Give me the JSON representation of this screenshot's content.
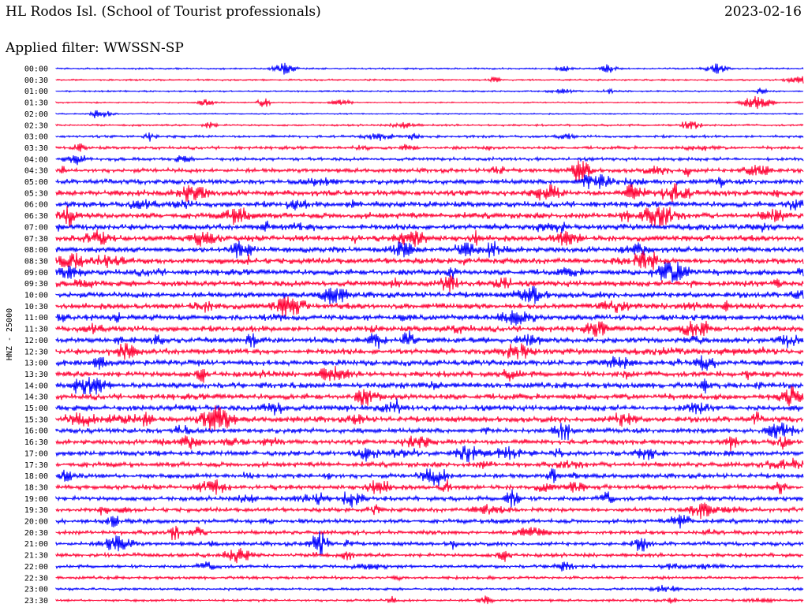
{
  "header": {
    "station": "HL Rodos Isl. (School of Tourist professionals)",
    "date": "2023-02-16",
    "filter": "Applied filter: WWSSN-SP"
  },
  "chart_data": {
    "type": "line",
    "ylabel": "HNZ - 25000",
    "row_labels": [
      "00:00",
      "00:30",
      "01:00",
      "01:30",
      "02:00",
      "02:30",
      "03:00",
      "03:30",
      "04:00",
      "04:30",
      "05:00",
      "05:30",
      "06:00",
      "06:30",
      "07:00",
      "07:30",
      "08:00",
      "08:30",
      "09:00",
      "09:30",
      "10:00",
      "10:30",
      "11:00",
      "11:30",
      "12:00",
      "12:30",
      "13:00",
      "13:30",
      "14:00",
      "14:30",
      "15:00",
      "15:30",
      "16:00",
      "16:30",
      "17:00",
      "17:30",
      "18:00",
      "18:30",
      "19:00",
      "19:30",
      "20:00",
      "20:30",
      "21:00",
      "21:30",
      "22:00",
      "22:30",
      "23:00",
      "23:30"
    ],
    "series_colors": [
      "#0000ff",
      "#ff0033"
    ],
    "noise_level": [
      1,
      1,
      1,
      0.8,
      0.8,
      1.2,
      1.5,
      1.8,
      2,
      2.5,
      3,
      3.5,
      3.5,
      3.5,
      3.5,
      3.5,
      3.5,
      3.5,
      3.5,
      3.5,
      3.5,
      3.5,
      3.5,
      3.5,
      3.5,
      3.5,
      3.5,
      3.5,
      3.5,
      3.5,
      3.5,
      3.5,
      3,
      3,
      3,
      3,
      2.8,
      2.8,
      2.8,
      2.5,
      2.5,
      2.5,
      2.3,
      2.3,
      2,
      1.8,
      1.5,
      1.5
    ]
  }
}
